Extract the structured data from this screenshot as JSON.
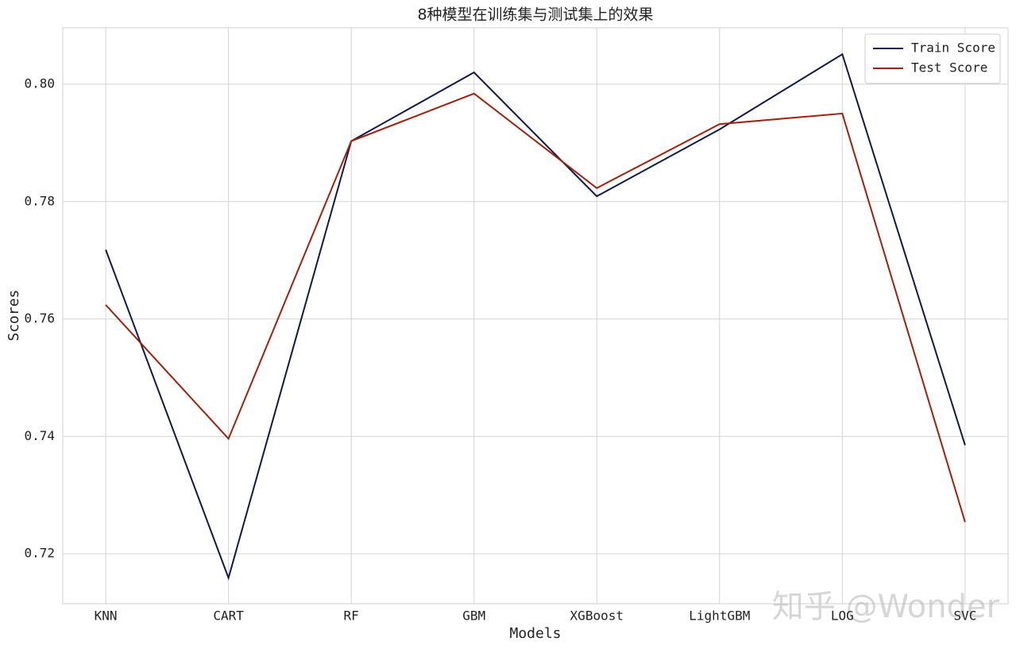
{
  "chart_data": {
    "type": "line",
    "title": "8种模型在训练集与测试集上的效果",
    "xlabel": "Models",
    "ylabel": "Scores",
    "categories": [
      "KNN",
      "CART",
      "RF",
      "GBM",
      "XGBoost",
      "LightGBM",
      "LOG",
      "SVC"
    ],
    "series": [
      {
        "name": "Train Score",
        "color": "#0f1a4a",
        "values": [
          0.7718,
          0.7159,
          0.7903,
          0.802,
          0.7809,
          0.7923,
          0.8051,
          0.7385
        ]
      },
      {
        "name": "Test Score",
        "color": "#a3200a",
        "values": [
          0.7624,
          0.7396,
          0.7903,
          0.7984,
          0.7823,
          0.7932,
          0.795,
          0.7254
        ]
      }
    ],
    "ylim": [
      0.7115,
      0.8096
    ],
    "yticks": [
      0.72,
      0.74,
      0.76,
      0.78,
      {
        "value": 0.8,
        "label": "0.80"
      }
    ],
    "grid": true,
    "legend": "upper right",
    "watermark": "知乎 @Wonder"
  }
}
